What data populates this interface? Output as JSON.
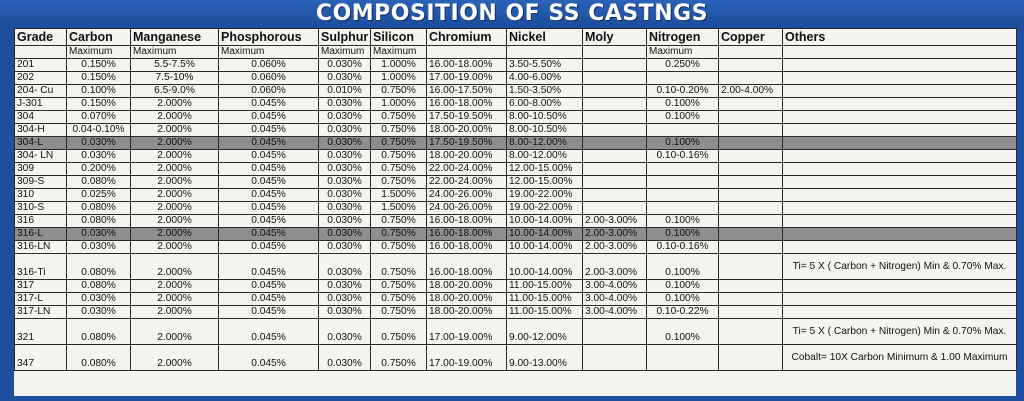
{
  "title": "COMPOSITION OF SS CASTNGS",
  "columns": [
    "Grade",
    "Carbon",
    "Manganese",
    "Phosphorous",
    "Sulphur",
    "Silicon",
    "Chromium",
    "Nickel",
    "Moly",
    "Nitrogen",
    "Copper",
    "Others"
  ],
  "subheader": [
    "",
    "Maximum",
    "Maximum",
    "Maximum",
    "Maximum",
    "Maximum",
    "",
    "",
    "",
    "Maximum",
    "",
    ""
  ],
  "rows": [
    {
      "cells": [
        "201",
        "0.150%",
        "5.5-7.5%",
        "0.060%",
        "0.030%",
        "1.000%",
        "16.00-18.00%",
        "3.50-5.50%",
        "",
        "0.250%",
        "",
        ""
      ]
    },
    {
      "cells": [
        "202",
        "0.150%",
        "7.5-10%",
        "0.060%",
        "0.030%",
        "1.000%",
        "17.00-19.00%",
        "4.00-6.00%",
        "",
        "",
        "",
        ""
      ]
    },
    {
      "cells": [
        "204- Cu",
        "0.100%",
        "6.5-9.0%",
        "0.060%",
        "0.010%",
        "0.750%",
        "16.00-17.50%",
        "1.50-3.50%",
        "",
        "0.10-0.20%",
        "2.00-4.00%",
        ""
      ]
    },
    {
      "cells": [
        "J-301",
        "0.150%",
        "2.000%",
        "0.045%",
        "0.030%",
        "1.000%",
        "16.00-18.00%",
        "6.00-8.00%",
        "",
        "0.100%",
        "",
        ""
      ]
    },
    {
      "cells": [
        "304",
        "0.070%",
        "2.000%",
        "0.045%",
        "0.030%",
        "0.750%",
        "17.50-19.50%",
        "8.00-10.50%",
        "",
        "0.100%",
        "",
        ""
      ]
    },
    {
      "cells": [
        "304-H",
        "0.04-0.10%",
        "2.000%",
        "0.045%",
        "0.030%",
        "0.750%",
        "18.00-20.00%",
        "8.00-10.50%",
        "",
        "",
        "",
        ""
      ]
    },
    {
      "cells": [
        "304-L",
        "0.030%",
        "2.000%",
        "0.045%",
        "0.030%",
        "0.750%",
        "17.50-19.50%",
        "8.00-12.00%",
        "",
        "0.100%",
        "",
        ""
      ]
    },
    {
      "cells": [
        "304- LN",
        "0.030%",
        "2.000%",
        "0.045%",
        "0.030%",
        "0.750%",
        "18.00-20.00%",
        "8.00-12.00%",
        "",
        "0.10-0.16%",
        "",
        ""
      ]
    },
    {
      "cells": [
        "309",
        "0.200%",
        "2.000%",
        "0.045%",
        "0.030%",
        "0.750%",
        "22.00-24.00%",
        "12.00-15.00%",
        "",
        "",
        "",
        ""
      ]
    },
    {
      "cells": [
        "309-S",
        "0.080%",
        "2.000%",
        "0.045%",
        "0.030%",
        "0.750%",
        "22.00-24.00%",
        "12.00-15.00%",
        "",
        "",
        "",
        ""
      ]
    },
    {
      "cells": [
        "310",
        "0.025%",
        "2.000%",
        "0.045%",
        "0.030%",
        "1.500%",
        "24.00-26.00%",
        "19.00-22.00%",
        "",
        "",
        "",
        ""
      ]
    },
    {
      "cells": [
        "310-S",
        "0.080%",
        "2.000%",
        "0.045%",
        "0.030%",
        "1.500%",
        "24.00-26.00%",
        "19.00-22.00%",
        "",
        "",
        "",
        ""
      ]
    },
    {
      "cells": [
        "316",
        "0.080%",
        "2.000%",
        "0.045%",
        "0.030%",
        "0.750%",
        "16.00-18.00%",
        "10.00-14.00%",
        "2.00-3.00%",
        "0.100%",
        "",
        ""
      ]
    },
    {
      "cells": [
        "316-L",
        "0.030%",
        "2.000%",
        "0.045%",
        "0.030%",
        "0.750%",
        "16.00-18.00%",
        "10.00-14.00%",
        "2.00-3.00%",
        "0.100%",
        "",
        ""
      ]
    },
    {
      "cells": [
        "316-LN",
        "0.030%",
        "2.000%",
        "0.045%",
        "0.030%",
        "0.750%",
        "16.00-18.00%",
        "10.00-14.00%",
        "2.00-3.00%",
        "0.10-0.16%",
        "",
        ""
      ]
    },
    {
      "cells": [
        "316-Ti",
        "0.080%",
        "2.000%",
        "0.045%",
        "0.030%",
        "0.750%",
        "16.00-18.00%",
        "10.00-14.00%",
        "2.00-3.00%",
        "0.100%",
        "",
        "Ti= 5 X ( Carbon + Nitrogen)  Min & 0.70% Max."
      ]
    },
    {
      "cells": [
        "317",
        "0.080%",
        "2.000%",
        "0.045%",
        "0.030%",
        "0.750%",
        "18.00-20.00%",
        "11.00-15.00%",
        "3.00-4.00%",
        "0.100%",
        "",
        ""
      ]
    },
    {
      "cells": [
        "317-L",
        "0.030%",
        "2.000%",
        "0.045%",
        "0.030%",
        "0.750%",
        "18.00-20.00%",
        "11.00-15.00%",
        "3.00-4.00%",
        "0.100%",
        "",
        ""
      ]
    },
    {
      "cells": [
        "317-LN",
        "0.030%",
        "2.000%",
        "0.045%",
        "0.030%",
        "0.750%",
        "18.00-20.00%",
        "11.00-15.00%",
        "3.00-4.00%",
        "0.10-0.22%",
        "",
        ""
      ]
    },
    {
      "cells": [
        "321",
        "0.080%",
        "2.000%",
        "0.045%",
        "0.030%",
        "0.750%",
        "17.00-19.00%",
        "9.00-12.00%",
        "",
        "0.100%",
        "",
        "Ti= 5 X ( Carbon + Nitrogen)  Min & 0.70% Max."
      ]
    },
    {
      "cells": [
        "347",
        "0.080%",
        "2.000%",
        "0.045%",
        "0.030%",
        "0.750%",
        "17.00-19.00%",
        "9.00-13.00%",
        "",
        "",
        "",
        "Cobalt= 10X Carbon Minimum & 1.00 Maximum"
      ]
    }
  ],
  "highlight_rows": [
    "304-L",
    "316-L"
  ],
  "tall_rows": [
    "316-Ti",
    "321",
    "347"
  ],
  "colors": {
    "banner": "#1f4f9e",
    "sheet": "#f4f4f0",
    "highlight": "#8e8e8e"
  }
}
